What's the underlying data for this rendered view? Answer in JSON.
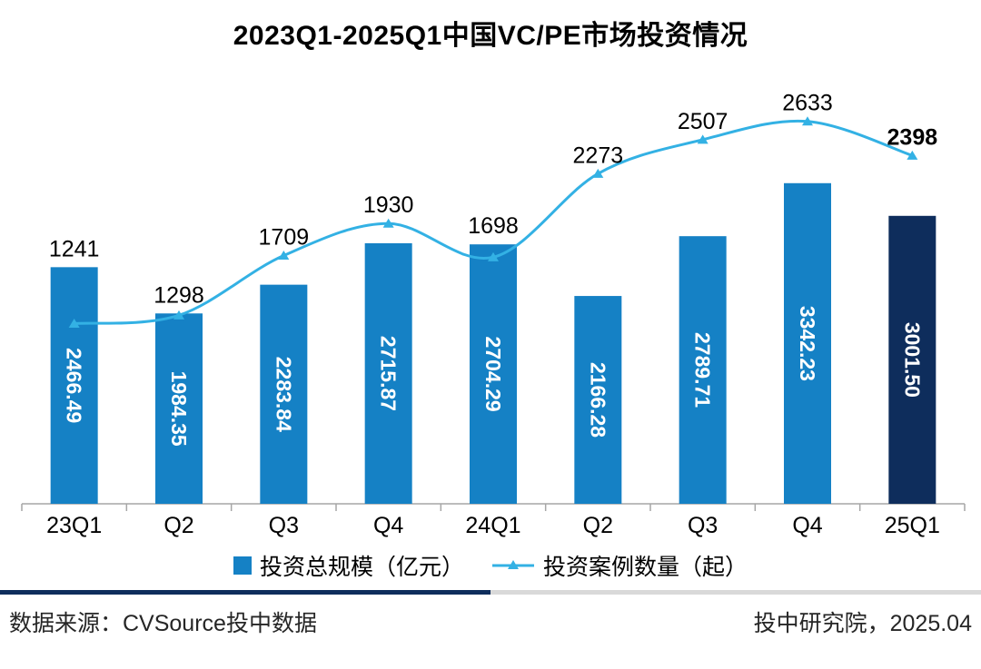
{
  "title": "2023Q1-2025Q1中国VC/PE市场投资情况",
  "chart_data": {
    "type": "bar",
    "title": "2023Q1-2025Q1中国VC/PE市场投资情况",
    "categories": [
      "23Q1",
      "Q2",
      "Q3",
      "Q4",
      "24Q1",
      "Q2",
      "Q3",
      "Q4",
      "25Q1"
    ],
    "series": [
      {
        "name": "投资总规模（亿元）",
        "type": "bar",
        "values": [
          2466.49,
          1984.35,
          2283.84,
          2715.87,
          2704.29,
          2166.28,
          2789.71,
          3342.23,
          3001.5
        ],
        "labels": [
          "2466.49",
          "1984.35",
          "2283.84",
          "2715.87",
          "2704.29",
          "2166.28",
          "2789.71",
          "3342.23",
          "3001.50"
        ],
        "color": "#1581c5",
        "highlight_index": 8,
        "highlight_color": "#0e2d5c"
      },
      {
        "name": "投资案例数量（起）",
        "type": "line",
        "values": [
          1241,
          1298,
          1709,
          1930,
          1698,
          2273,
          2507,
          2633,
          2398
        ],
        "labels": [
          "1241",
          "1298",
          "1709",
          "1930",
          "1698",
          "2273",
          "2507",
          "2633",
          "2398"
        ],
        "color": "#33b1e4",
        "last_label_bold": true
      }
    ],
    "bar_axis": {
      "min": 0,
      "max": 4400
    },
    "line_axis": {
      "min": 0,
      "max": 3000
    },
    "legend_position": "bottom",
    "grid": false
  },
  "colors": {
    "axis": "#a6a6a6",
    "bar_value_label": "#ffffff",
    "point_value_label": "#000000",
    "divider_left": "#0e2d5c",
    "divider_right": "#d9d9d9"
  },
  "footer": {
    "source": "数据来源：CVSource投中数据",
    "publisher": "投中研究院，2025.04"
  }
}
